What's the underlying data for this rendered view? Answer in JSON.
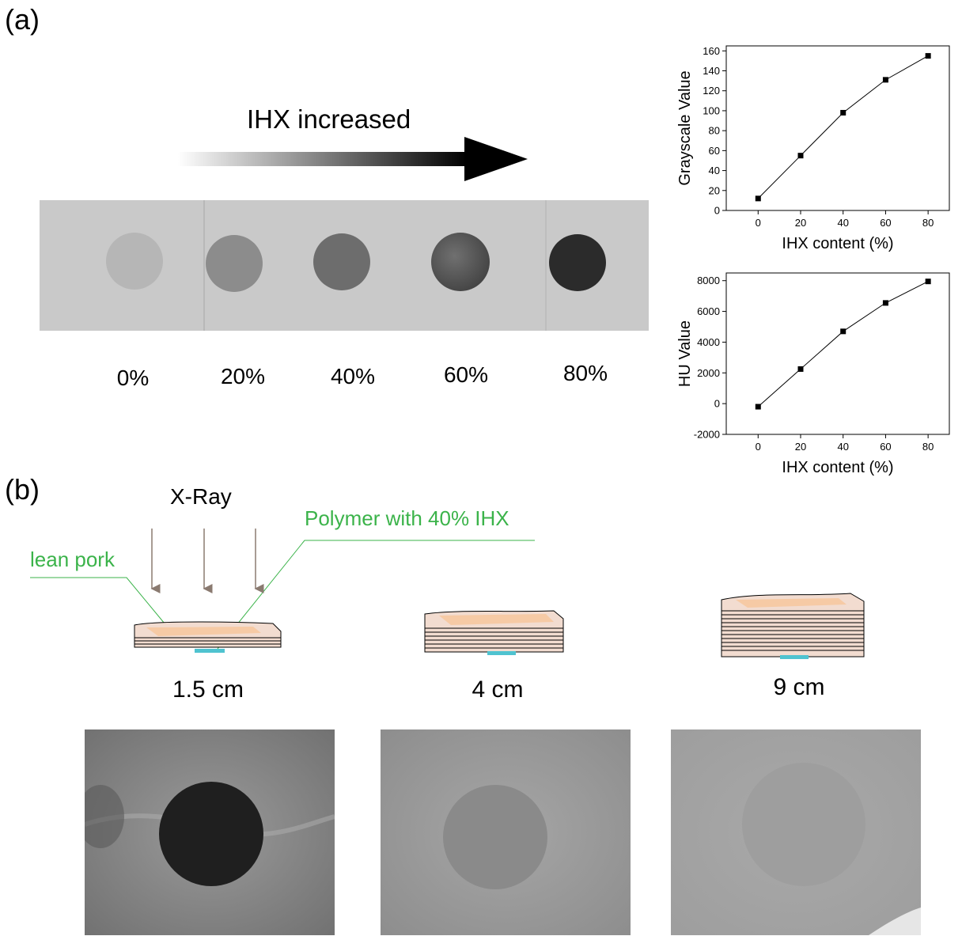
{
  "panel_a_label": "(a)",
  "panel_b_label": "(b)",
  "arrow_label": "IHX increased",
  "sample_labels": [
    "0%",
    "20%",
    "40%",
    "60%",
    "80%"
  ],
  "xray_label": "X-Ray",
  "lean_pork_label": "lean pork",
  "polymer_label": "Polymer with 40% IHX",
  "thickness_labels": [
    "1.5 cm",
    "4 cm",
    "9 cm"
  ],
  "colors": {
    "annotation_green": "#3bb34a",
    "pork_fill": "#f7d3b5",
    "polymer_strip": "#4fc3d0",
    "arrow_dark": "#000000"
  },
  "chart_data": [
    {
      "type": "line",
      "x": [
        0,
        20,
        40,
        60,
        80
      ],
      "y": [
        12,
        55,
        98,
        131,
        155
      ],
      "xlabel": "IHX content (%)",
      "ylabel": "Grayscale Value",
      "xticks": [
        "0",
        "20",
        "40",
        "60",
        "80"
      ],
      "yticks": [
        "0",
        "20",
        "40",
        "60",
        "80",
        "100",
        "120",
        "140",
        "160"
      ],
      "xlim": [
        -15,
        90
      ],
      "ylim": [
        0,
        165
      ],
      "marker": "square",
      "grid": false
    },
    {
      "type": "line",
      "x": [
        0,
        20,
        40,
        60,
        80
      ],
      "y": [
        -200,
        2250,
        4700,
        6550,
        7950
      ],
      "xlabel": "IHX content (%)",
      "ylabel": "HU Value",
      "xticks": [
        "0",
        "20",
        "40",
        "60",
        "80"
      ],
      "yticks": [
        "-2000",
        "0",
        "2000",
        "4000",
        "6000",
        "8000"
      ],
      "xlim": [
        -15,
        90
      ],
      "ylim": [
        -2000,
        8500
      ],
      "marker": "square",
      "grid": false
    }
  ]
}
